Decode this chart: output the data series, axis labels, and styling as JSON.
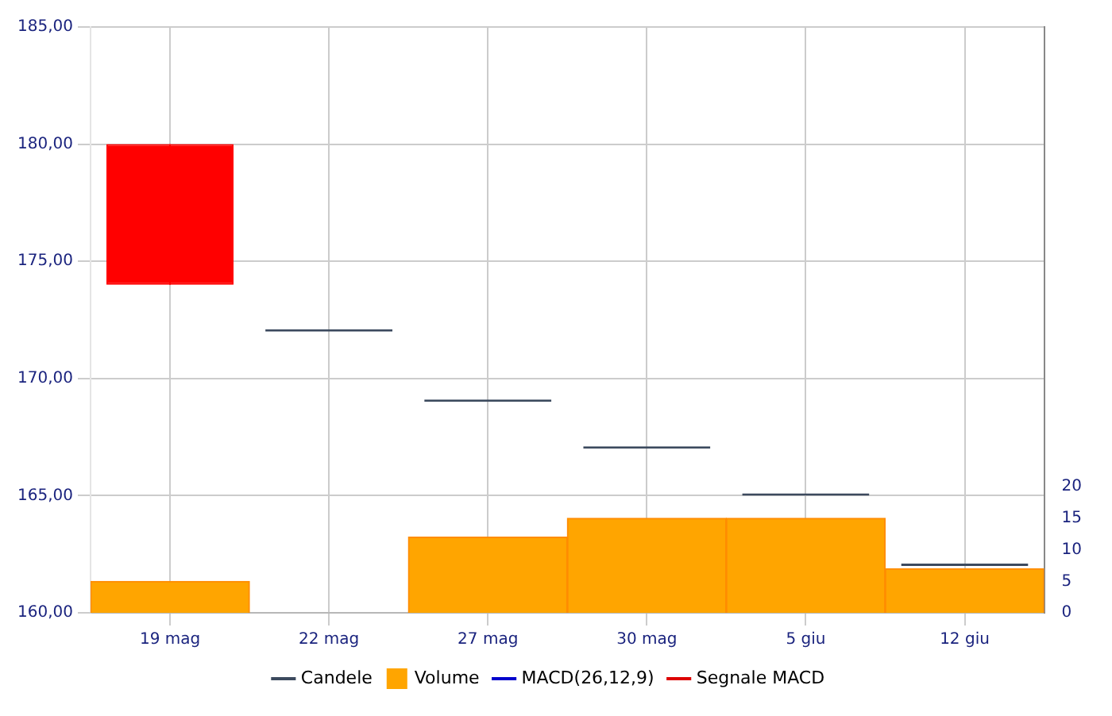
{
  "chart_data": {
    "type": "candlestick",
    "categories": [
      "19 mag",
      "22 mag",
      "27 mag",
      "30 mag",
      "5 giu",
      "12 giu"
    ],
    "series": [
      {
        "name": "Candele",
        "type": "candlestick",
        "color": "#3c4a5e",
        "colors": [
          "#ff0000",
          "#3c4a5e",
          "#3c4a5e",
          "#3c4a5e",
          "#3c4a5e",
          "#3c4a5e"
        ],
        "ohlc": [
          [
            180,
            180,
            174,
            174
          ],
          [
            172,
            172,
            172,
            172
          ],
          [
            169,
            169,
            169,
            169
          ],
          [
            167,
            167,
            167,
            167
          ],
          [
            165,
            165,
            165,
            165
          ],
          [
            162,
            162,
            162,
            162
          ]
        ]
      },
      {
        "name": "Volume",
        "type": "bar",
        "axis": "y2",
        "color": "#ffa500",
        "values": [
          5,
          0,
          12,
          15,
          15,
          7
        ]
      },
      {
        "name": "MACD(26,12,9)",
        "type": "line",
        "color": "#0000cc",
        "values": [
          null,
          null,
          null,
          null,
          null,
          null
        ]
      },
      {
        "name": "Segnale MACD",
        "type": "line",
        "color": "#dd0000",
        "values": [
          null,
          null,
          null,
          null,
          null,
          null
        ]
      }
    ],
    "ylim": [
      160,
      185
    ],
    "yticks": [
      {
        "value": 160,
        "label": "160,00"
      },
      {
        "value": 165,
        "label": "165,00"
      },
      {
        "value": 170,
        "label": "170,00"
      },
      {
        "value": 175,
        "label": "175,00"
      },
      {
        "value": 180,
        "label": "180,00"
      },
      {
        "value": 185,
        "label": "185,00"
      }
    ],
    "y2lim": [
      0,
      93
    ],
    "y2ticks": [
      0,
      5,
      10,
      15,
      20
    ],
    "grid": true,
    "legend": "bottom"
  }
}
